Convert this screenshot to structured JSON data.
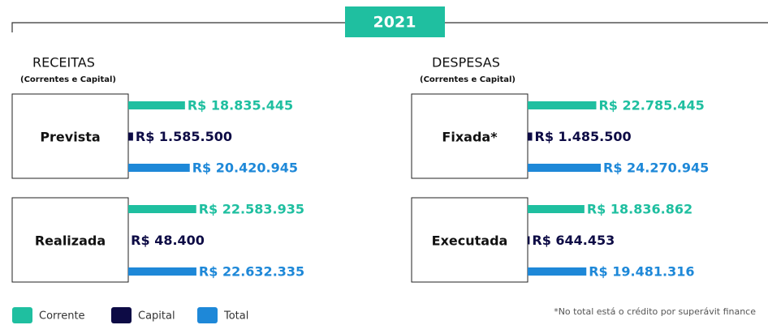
{
  "chart_data": {
    "type": "bar",
    "title": "2021",
    "series": [
      {
        "name": "Corrente",
        "color": "#1fbfa0"
      },
      {
        "name": "Capital",
        "color": "#0d0b45"
      },
      {
        "name": "Total",
        "color": "#1e88d8"
      }
    ],
    "panels": [
      {
        "title": "RECEITAS",
        "subtitle": "(Correntes e Capital)",
        "groups": [
          {
            "label": "Prevista",
            "values": [
              18835445,
              1585500,
              20420945
            ],
            "value_labels": [
              "R$ 18.835.445",
              "R$ 1.585.500",
              "R$ 20.420.945"
            ]
          },
          {
            "label": "Realizada",
            "values": [
              22583935,
              48400,
              22632335
            ],
            "value_labels": [
              "R$ 22.583.935",
              "R$ 48.400",
              "R$ 22.632.335"
            ]
          }
        ]
      },
      {
        "title": "DESPESAS",
        "subtitle": "(Correntes e Capital)",
        "groups": [
          {
            "label": "Fixada*",
            "values": [
              22785445,
              1485500,
              24270945
            ],
            "value_labels": [
              "R$ 22.785.445",
              "R$ 1.485.500",
              "R$ 24.270.945"
            ]
          },
          {
            "label": "Executada",
            "values": [
              18836862,
              644453,
              19481316
            ],
            "value_labels": [
              "R$ 18.836.862",
              "R$ 644.453",
              "R$ 19.481.316"
            ]
          }
        ]
      }
    ],
    "note": "*No total está o crédito por superávit finance"
  }
}
